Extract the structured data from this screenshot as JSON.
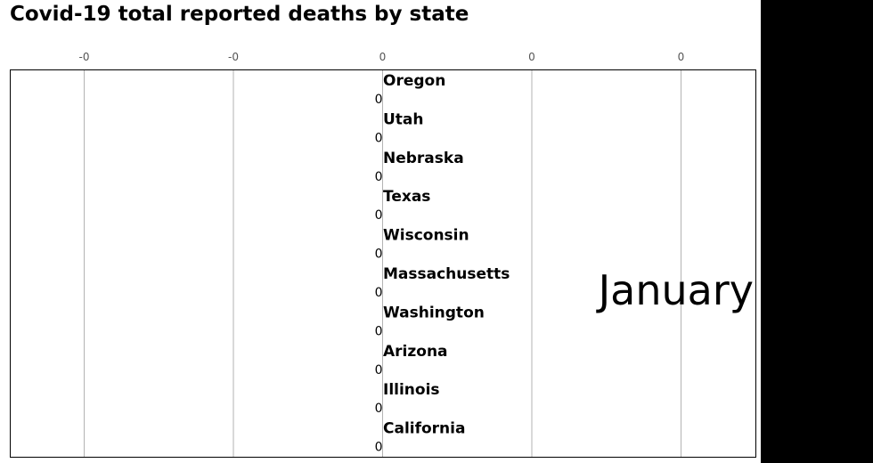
{
  "chart_data": {
    "type": "bar",
    "orientation": "horizontal",
    "title": "Covid-19 total reported deaths by state",
    "xlabel": "",
    "ylabel": "",
    "period_label": "January",
    "grid": true,
    "x_tick_labels": [
      "-0",
      "-0",
      "0",
      "0",
      "0"
    ],
    "categories": [
      "Oregon",
      "Utah",
      "Nebraska",
      "Texas",
      "Wisconsin",
      "Massachusetts",
      "Washington",
      "Arizona",
      "Illinois",
      "California"
    ],
    "values": [
      0,
      0,
      0,
      0,
      0,
      0,
      0,
      0,
      0,
      0
    ],
    "value_labels": [
      "0",
      "0",
      "0",
      "0",
      "0",
      "0",
      "0",
      "0",
      "0",
      "0"
    ]
  }
}
